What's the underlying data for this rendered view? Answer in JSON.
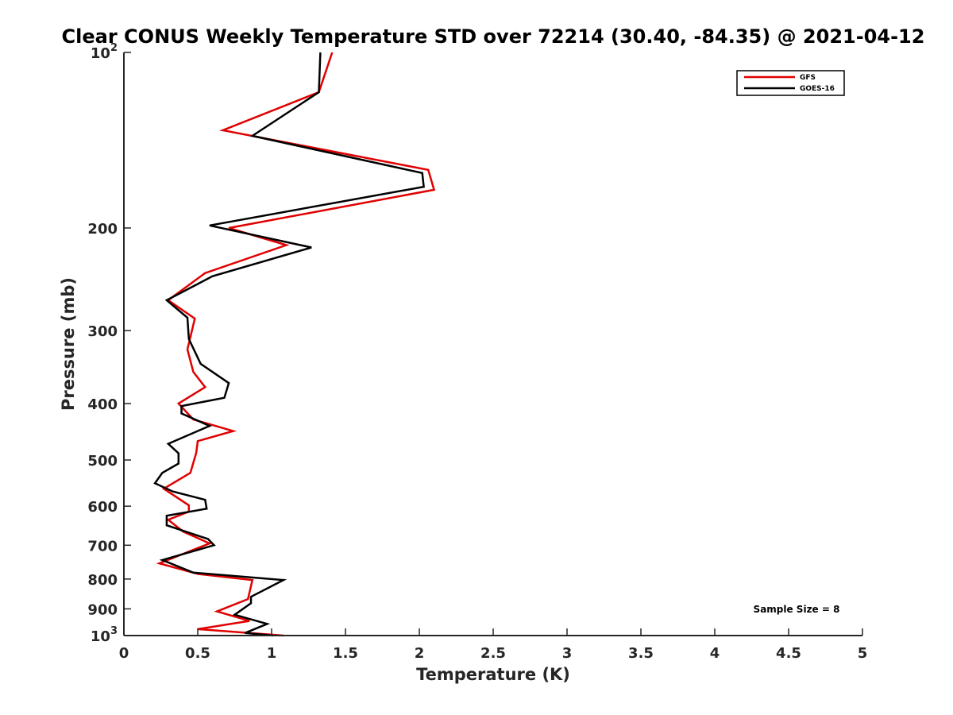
{
  "chart_data": {
    "type": "line",
    "title": "Clear CONUS Weekly Temperature STD over 72214 (30.40, -84.35) @ 2021-04-12",
    "xlabel": "Temperature (K)",
    "ylabel": "Pressure (mb)",
    "xlim": [
      0,
      5
    ],
    "ylim": [
      100,
      1000
    ],
    "y_scale": "log",
    "y_reversed": true,
    "grid": false,
    "x_ticks": [
      {
        "value": 0,
        "label": "0"
      },
      {
        "value": 0.5,
        "label": "0.5"
      },
      {
        "value": 1,
        "label": "1"
      },
      {
        "value": 1.5,
        "label": "1.5"
      },
      {
        "value": 2,
        "label": "2"
      },
      {
        "value": 2.5,
        "label": "2.5"
      },
      {
        "value": 3,
        "label": "3"
      },
      {
        "value": 3.5,
        "label": "3.5"
      },
      {
        "value": 4,
        "label": "4"
      },
      {
        "value": 4.5,
        "label": "4.5"
      },
      {
        "value": 5,
        "label": "5"
      }
    ],
    "y_ticks": [
      {
        "value": 100,
        "base": "10",
        "exp": "2"
      },
      {
        "value": 200,
        "label": "200"
      },
      {
        "value": 300,
        "label": "300"
      },
      {
        "value": 400,
        "label": "400"
      },
      {
        "value": 500,
        "label": "500"
      },
      {
        "value": 600,
        "label": "600"
      },
      {
        "value": 700,
        "label": "700"
      },
      {
        "value": 800,
        "label": "800"
      },
      {
        "value": 900,
        "label": "900"
      },
      {
        "value": 1000,
        "base": "10",
        "exp": "3"
      }
    ],
    "legend_position": "top-right",
    "series": [
      {
        "name": "GFS",
        "color": "#e00000",
        "points": [
          [
            1.41,
            100
          ],
          [
            1.32,
            117
          ],
          [
            0.67,
            136
          ],
          [
            2.06,
            159
          ],
          [
            2.1,
            172
          ],
          [
            0.71,
            200
          ],
          [
            1.1,
            214
          ],
          [
            0.55,
            239
          ],
          [
            0.3,
            266
          ],
          [
            0.48,
            286
          ],
          [
            0.43,
            323
          ],
          [
            0.47,
            353
          ],
          [
            0.55,
            375
          ],
          [
            0.37,
            400
          ],
          [
            0.47,
            426
          ],
          [
            0.74,
            446
          ],
          [
            0.5,
            464
          ],
          [
            0.49,
            486
          ],
          [
            0.45,
            526
          ],
          [
            0.27,
            560
          ],
          [
            0.44,
            598
          ],
          [
            0.44,
            613
          ],
          [
            0.3,
            633
          ],
          [
            0.4,
            663
          ],
          [
            0.58,
            695
          ],
          [
            0.24,
            752
          ],
          [
            0.5,
            784
          ],
          [
            0.87,
            803
          ],
          [
            0.84,
            866
          ],
          [
            0.63,
            909
          ],
          [
            0.85,
            944
          ],
          [
            0.5,
            975
          ],
          [
            1.08,
            1000
          ]
        ]
      },
      {
        "name": "GOES-16",
        "color": "#000000",
        "points": [
          [
            1.33,
            100
          ],
          [
            1.32,
            117
          ],
          [
            0.87,
            139
          ],
          [
            2.02,
            161
          ],
          [
            2.03,
            170
          ],
          [
            0.58,
            198
          ],
          [
            1.27,
            216
          ],
          [
            0.6,
            242
          ],
          [
            0.29,
            266
          ],
          [
            0.43,
            285
          ],
          [
            0.44,
            310
          ],
          [
            0.52,
            342
          ],
          [
            0.71,
            369
          ],
          [
            0.68,
            391
          ],
          [
            0.39,
            404
          ],
          [
            0.39,
            416
          ],
          [
            0.58,
            437
          ],
          [
            0.3,
            469
          ],
          [
            0.37,
            487
          ],
          [
            0.37,
            507
          ],
          [
            0.26,
            526
          ],
          [
            0.21,
            548
          ],
          [
            0.33,
            566
          ],
          [
            0.55,
            585
          ],
          [
            0.56,
            606
          ],
          [
            0.29,
            623
          ],
          [
            0.29,
            647
          ],
          [
            0.57,
            683
          ],
          [
            0.61,
            700
          ],
          [
            0.26,
            742
          ],
          [
            0.47,
            780
          ],
          [
            1.08,
            803
          ],
          [
            0.86,
            858
          ],
          [
            0.86,
            880
          ],
          [
            0.75,
            921
          ],
          [
            0.97,
            955
          ],
          [
            0.82,
            990
          ],
          [
            1.01,
            1000
          ]
        ]
      }
    ],
    "annotation": "Sample Size = 8"
  }
}
